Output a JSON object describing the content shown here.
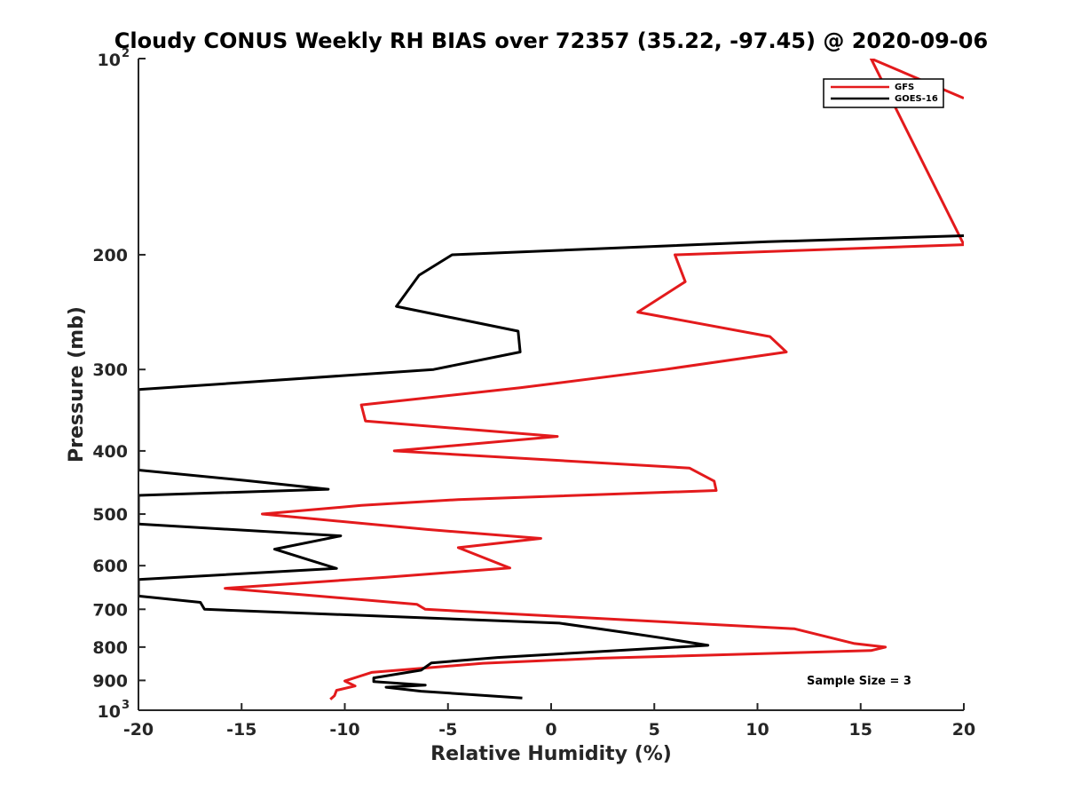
{
  "chart_data": {
    "type": "line",
    "title": "Cloudy CONUS Weekly RH BIAS over 72357 (35.22, -97.45) @ 2020-09-06",
    "xlabel": "Relative Humidity (%)",
    "ylabel": "Pressure (mb)",
    "xlim": [
      -20,
      20
    ],
    "ylim": [
      100,
      1000
    ],
    "y_scale": "log",
    "y_reversed": true,
    "grid": false,
    "legend_position": "top-right",
    "x_ticks": [
      -20,
      -15,
      -10,
      -5,
      0,
      5,
      10,
      15,
      20
    ],
    "x_tick_labels": [
      "-20",
      "-15",
      "-10",
      "-5",
      "0",
      "5",
      "10",
      "15",
      "20"
    ],
    "y_ticks": [
      {
        "value": 100,
        "label": "10",
        "exp": "2"
      },
      {
        "value": 200,
        "label": "200",
        "exp": ""
      },
      {
        "value": 300,
        "label": "300",
        "exp": ""
      },
      {
        "value": 400,
        "label": "400",
        "exp": ""
      },
      {
        "value": 500,
        "label": "500",
        "exp": ""
      },
      {
        "value": 600,
        "label": "600",
        "exp": ""
      },
      {
        "value": 700,
        "label": "700",
        "exp": ""
      },
      {
        "value": 800,
        "label": "800",
        "exp": ""
      },
      {
        "value": 900,
        "label": "900",
        "exp": ""
      },
      {
        "value": 1000,
        "label": "10",
        "exp": "3"
      }
    ],
    "annotation": "Sample Size = 3",
    "series": [
      {
        "name": "GFS",
        "color": "#e31a1c",
        "points": [
          [
            20,
            115
          ],
          [
            15.5,
            100
          ],
          [
            20,
            193
          ],
          [
            6,
            200
          ],
          [
            6.5,
            220
          ],
          [
            4.2,
            245
          ],
          [
            10.6,
            267
          ],
          [
            11.4,
            282
          ],
          [
            5.5,
            300
          ],
          [
            -1.5,
            320
          ],
          [
            -9.2,
            340
          ],
          [
            -9,
            360
          ],
          [
            0.3,
            380
          ],
          [
            -7.6,
            400
          ],
          [
            6.7,
            425
          ],
          [
            7.9,
            445
          ],
          [
            8,
            460
          ],
          [
            -4.5,
            475
          ],
          [
            -9.2,
            485
          ],
          [
            -14,
            500
          ],
          [
            -6,
            528
          ],
          [
            -0.5,
            545
          ],
          [
            -4.5,
            563
          ],
          [
            -2,
            605
          ],
          [
            -8,
            625
          ],
          [
            -15.8,
            650
          ],
          [
            -12,
            665
          ],
          [
            -6.5,
            688
          ],
          [
            -6.1,
            700
          ],
          [
            11.8,
            750
          ],
          [
            14.7,
            790
          ],
          [
            16.2,
            800
          ],
          [
            15.5,
            810
          ],
          [
            2.4,
            832
          ],
          [
            -3.3,
            847
          ],
          [
            -8.7,
            875
          ],
          [
            -10,
            902
          ],
          [
            -9.5,
            918
          ],
          [
            -10.4,
            932
          ],
          [
            -10.5,
            950
          ],
          [
            -10.7,
            962
          ]
        ]
      },
      {
        "name": "GOES-16",
        "color": "#000000",
        "points": [
          [
            20,
            187
          ],
          [
            10.5,
            191
          ],
          [
            -4.8,
            200
          ],
          [
            -6.4,
            215
          ],
          [
            -7.5,
            240
          ],
          [
            -1.6,
            262
          ],
          [
            -1.5,
            282
          ],
          [
            -5.7,
            300
          ],
          [
            -20,
            322
          ],
          [
            -20,
            428
          ],
          [
            -14.8,
            444
          ],
          [
            -10.8,
            458
          ],
          [
            -20,
            468
          ],
          [
            -20,
            518
          ],
          [
            -10.2,
            540
          ],
          [
            -13.4,
            566
          ],
          [
            -11.8,
            587
          ],
          [
            -10.4,
            606
          ],
          [
            -20,
            630
          ],
          [
            -20,
            668
          ],
          [
            -17,
            683
          ],
          [
            -16.8,
            700
          ],
          [
            0.4,
            735
          ],
          [
            3.6,
            760
          ],
          [
            5.4,
            775
          ],
          [
            7.6,
            795
          ],
          [
            -2.6,
            830
          ],
          [
            -5.8,
            846
          ],
          [
            -6.3,
            868
          ],
          [
            -8.6,
            892
          ],
          [
            -8.6,
            904
          ],
          [
            -6.1,
            915
          ],
          [
            -8,
            922
          ],
          [
            -6.3,
            935
          ],
          [
            -1.4,
            958
          ]
        ]
      }
    ]
  }
}
